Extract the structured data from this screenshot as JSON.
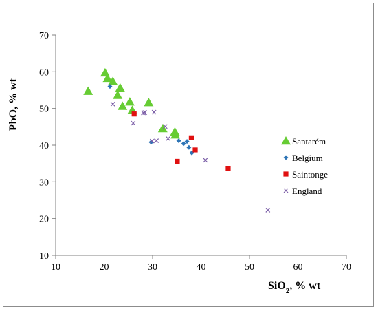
{
  "chart_data": {
    "type": "scatter",
    "xlabel": "SiO₂, % wt",
    "xlabel_main": "SiO",
    "xlabel_sub": "2",
    "xlabel_tail": ", % wt",
    "ylabel": "PbO, % wt",
    "xlim": [
      10,
      70
    ],
    "ylim": [
      10,
      70
    ],
    "xticks": [
      10,
      20,
      30,
      40,
      50,
      60,
      70
    ],
    "yticks": [
      10,
      20,
      30,
      40,
      50,
      60,
      70
    ],
    "grid": false,
    "legend_position": "right",
    "series": [
      {
        "name": "Santarém",
        "marker": "triangle",
        "color": "#66CC33",
        "points": [
          [
            16.7,
            54.7
          ],
          [
            20.2,
            59.7
          ],
          [
            20.7,
            58.2
          ],
          [
            21.8,
            57.4
          ],
          [
            22.8,
            53.6
          ],
          [
            23.3,
            55.6
          ],
          [
            23.8,
            50.6
          ],
          [
            25.3,
            51.8
          ],
          [
            25.8,
            49.5
          ],
          [
            29.2,
            51.6
          ],
          [
            32.1,
            44.5
          ],
          [
            34.6,
            43.6
          ],
          [
            34.7,
            42.8
          ]
        ]
      },
      {
        "name": "Belgium",
        "marker": "diamond",
        "color": "#2E75B6",
        "points": [
          [
            21.2,
            56.0
          ],
          [
            29.7,
            40.8
          ],
          [
            35.4,
            41.2
          ],
          [
            36.4,
            40.4
          ],
          [
            37.1,
            41.0
          ],
          [
            37.5,
            39.4
          ],
          [
            38.1,
            37.9
          ]
        ]
      },
      {
        "name": "Saintonge",
        "marker": "square",
        "color": "#E01010",
        "points": [
          [
            26.2,
            48.5
          ],
          [
            35.1,
            35.6
          ],
          [
            38.0,
            42.0
          ],
          [
            38.8,
            38.7
          ],
          [
            45.6,
            33.7
          ]
        ]
      },
      {
        "name": "England",
        "marker": "x",
        "color": "#7B5EA7",
        "points": [
          [
            21.8,
            51.2
          ],
          [
            26.0,
            46.0
          ],
          [
            28.1,
            48.8
          ],
          [
            28.4,
            48.9
          ],
          [
            29.9,
            41.1
          ],
          [
            30.3,
            49.0
          ],
          [
            30.8,
            41.2
          ],
          [
            32.6,
            45.1
          ],
          [
            33.2,
            41.8
          ],
          [
            40.9,
            35.9
          ],
          [
            53.8,
            22.3
          ]
        ]
      }
    ]
  }
}
